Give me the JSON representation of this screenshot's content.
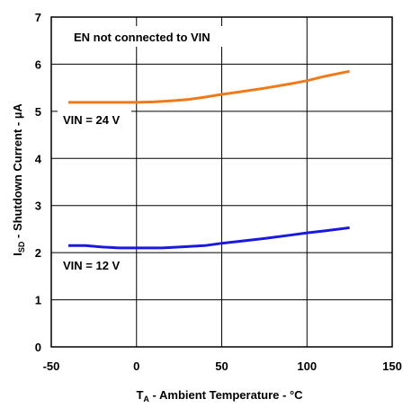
{
  "chart_data": {
    "type": "line",
    "title": "",
    "xlabel": {
      "main": "T",
      "sub": "A",
      "rest": " - Ambient Temperature - °C"
    },
    "ylabel": {
      "main": "I",
      "sub": "SD",
      "rest": " - Shutdown Current - µA"
    },
    "xlim": [
      -50,
      150
    ],
    "ylim": [
      0,
      7
    ],
    "xticks": [
      "-50",
      "0",
      "50",
      "100",
      "150"
    ],
    "yticks": [
      "0",
      "1",
      "2",
      "3",
      "4",
      "5",
      "6",
      "7"
    ],
    "grid": true,
    "annotation": "EN not connected to VIN",
    "series": [
      {
        "name": "VIN = 24 V",
        "color": "#f07a1a",
        "x": [
          -40,
          -25,
          -10,
          0,
          10,
          20,
          30,
          40,
          50,
          60,
          75,
          90,
          100,
          110,
          125
        ],
        "y": [
          5.19,
          5.19,
          5.19,
          5.19,
          5.2,
          5.22,
          5.25,
          5.3,
          5.36,
          5.41,
          5.49,
          5.58,
          5.65,
          5.74,
          5.85
        ]
      },
      {
        "name": "VIN = 12 V",
        "color": "#1a1adf",
        "x": [
          -40,
          -30,
          -20,
          -10,
          0,
          15,
          25,
          40,
          50,
          60,
          75,
          90,
          100,
          110,
          125
        ],
        "y": [
          2.15,
          2.15,
          2.12,
          2.1,
          2.1,
          2.1,
          2.12,
          2.15,
          2.2,
          2.24,
          2.3,
          2.37,
          2.42,
          2.46,
          2.53
        ]
      }
    ]
  }
}
